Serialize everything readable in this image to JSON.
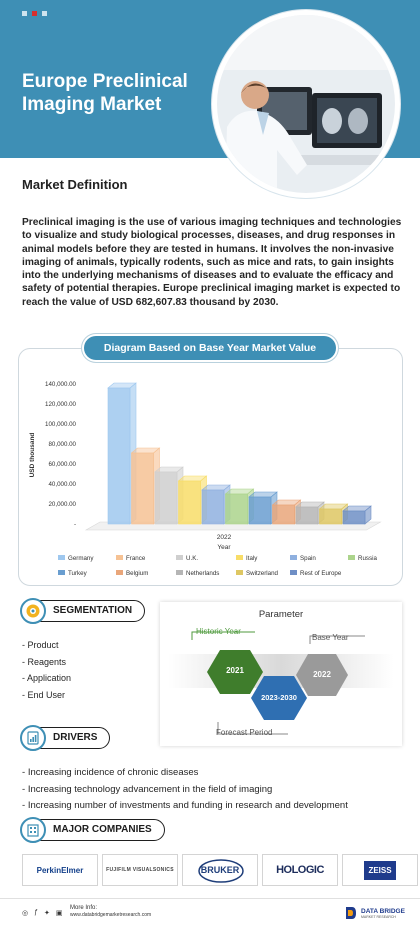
{
  "hero": {
    "title": "Europe Preclinical Imaging Market",
    "bg_color": "#3e8fb5",
    "dots": [
      "#cfe3ee",
      "#d62f2f",
      "#cfe3ee"
    ]
  },
  "definition": {
    "heading": "Market Definition",
    "text": "Preclinical imaging is the use of various imaging techniques and technologies to visualize and study biological processes, diseases, and drug responses in animal models before they are tested in humans. It involves the non-invasive imaging of animals, typically rodents, such as mice and rats, to gain insights into the underlying mechanisms of diseases and to evaluate the efficacy and safety of potential therapies. Europe preclinical imaging market is expected to reach the value of USD 682,607.83 thousand by 2030."
  },
  "chart_panel": {
    "title": "Diagram Based on Base Year Market Value"
  },
  "chart_data": {
    "type": "bar",
    "x_category": "2022",
    "xlabel": "Year",
    "ylabel": "USD thousand",
    "ylim": [
      0,
      140000
    ],
    "yticks": [
      "-",
      "20,000.00",
      "40,000.00",
      "60,000.00",
      "80,000.00",
      "100,000.00",
      "120,000.00",
      "140,000.00"
    ],
    "series": [
      {
        "name": "Germany",
        "value": 136000,
        "color": "#9fc8ef"
      },
      {
        "name": "France",
        "value": 71000,
        "color": "#f6c294"
      },
      {
        "name": "U.K.",
        "value": 52000,
        "color": "#cfcfcf"
      },
      {
        "name": "Italy",
        "value": 43000,
        "color": "#f8dd68"
      },
      {
        "name": "Spain",
        "value": 34000,
        "color": "#8fb0df"
      },
      {
        "name": "Russia",
        "value": 30000,
        "color": "#acd48c"
      },
      {
        "name": "Turkey",
        "value": 27000,
        "color": "#6a9ed0"
      },
      {
        "name": "Belgium",
        "value": 19000,
        "color": "#e9a67a"
      },
      {
        "name": "Netherlands",
        "value": 17000,
        "color": "#b5b5b5"
      },
      {
        "name": "Switzerland",
        "value": 15000,
        "color": "#dec763"
      },
      {
        "name": "Rest of Europe",
        "value": 13000,
        "color": "#6f8fc5"
      }
    ],
    "legend_placement": "bottom",
    "grid": false
  },
  "segmentation": {
    "label": "SEGMENTATION",
    "items": [
      "Product",
      "Reagents",
      "Application",
      "End User"
    ]
  },
  "parameter": {
    "title": "Parameter",
    "historic_label": "Historic Year",
    "base_label": "Base Year",
    "forecast_label": "Forecast Period",
    "historic_value": "2021",
    "forecast_value": "2023-2030",
    "base_value": "2022"
  },
  "drivers": {
    "label": "DRIVERS",
    "items": [
      "Increasing incidence of chronic diseases",
      "Increasing technology advancement in the field of imaging",
      "Increasing number of investments and funding in research and development"
    ]
  },
  "companies": {
    "label": "MAJOR COMPANIES",
    "logos": [
      "PerkinElmer",
      "FUJIFILM VISUALSONICS",
      "BRUKER",
      "HOLOGIC",
      "ZEISS"
    ]
  },
  "footer": {
    "more_info": "More Info:",
    "url": "www.databridgemarketresearch.com",
    "brand": "DATA BRIDGE",
    "brand_sub": "MARKET RESEARCH"
  }
}
